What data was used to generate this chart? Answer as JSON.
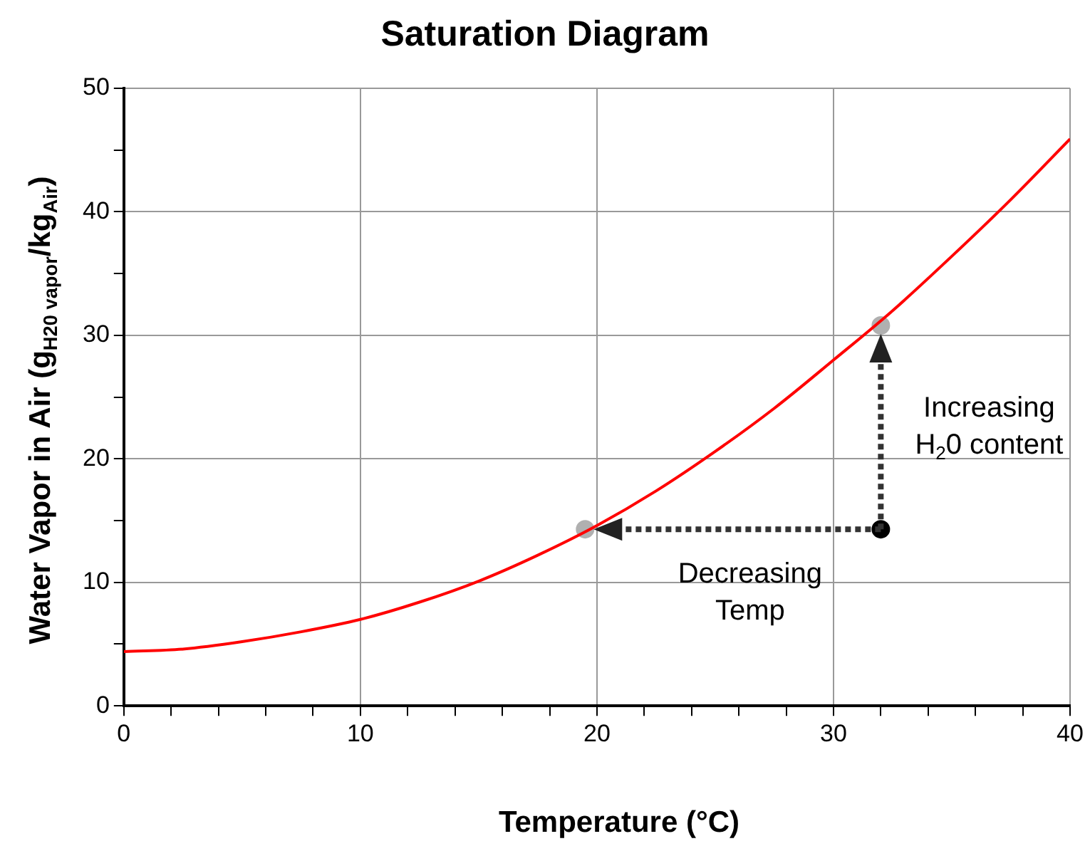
{
  "chart_data": {
    "type": "line",
    "title": "Saturation Diagram",
    "xlabel": "Temperature (°C)",
    "ylabel": "Water Vapor in Air (g$_{H20 vapor}$/kg$_{Air}$)",
    "xlim": [
      0,
      40
    ],
    "xticks": [
      0,
      {
        "value": 2,
        "label": null
      },
      {
        "value": 4,
        "label": null
      },
      {
        "value": 6,
        "label": null
      },
      {
        "value": 8,
        "label": null
      },
      10,
      {
        "value": 12,
        "label": null
      },
      {
        "value": 14,
        "label": null
      },
      {
        "value": 16,
        "label": null
      },
      {
        "value": 18,
        "label": null
      },
      20,
      {
        "value": 22,
        "label": null
      },
      {
        "value": 24,
        "label": null
      },
      {
        "value": 26,
        "label": null
      },
      {
        "value": 28,
        "label": null
      },
      30,
      {
        "value": 32,
        "label": null
      },
      {
        "value": 34,
        "label": null
      },
      {
        "value": 36,
        "label": null
      },
      {
        "value": 38,
        "label": null
      },
      40
    ],
    "ylim": [
      0,
      50
    ],
    "yticks": [
      0,
      {
        "value": 5,
        "label": null
      },
      10,
      {
        "value": 15,
        "label": null
      },
      20,
      {
        "value": 25,
        "label": null
      },
      30,
      {
        "value": 35,
        "label": null
      },
      40,
      {
        "value": 45,
        "label": null
      },
      50
    ],
    "grid": true,
    "legend": false,
    "series": [
      {
        "color": "#ff0000",
        "marker": "none",
        "x": [
          0,
          2.5,
          5,
          7.5,
          10,
          12.5,
          15,
          17.5,
          20,
          22.5,
          25,
          27.5,
          30,
          32.5,
          35,
          37.5,
          40
        ],
        "values": [
          4.4,
          4.6,
          5.2,
          6.0,
          7.0,
          8.4,
          10.1,
          12.2,
          14.6,
          17.4,
          20.6,
          24.1,
          28.0,
          32.0,
          36.4,
          41.0,
          45.9
        ]
      },
      {
        "type": "scatter",
        "marker": "circle",
        "colors": [
          "#b0b0b0",
          "#b0b0b0",
          "#000000"
        ],
        "x": [
          19.5,
          32,
          32
        ],
        "values": [
          14.3,
          30.8,
          14.3
        ]
      }
    ],
    "annotations": [
      "Decreasing\nTemp",
      "Increasing\nH$_{2}$0 content"
    ]
  }
}
